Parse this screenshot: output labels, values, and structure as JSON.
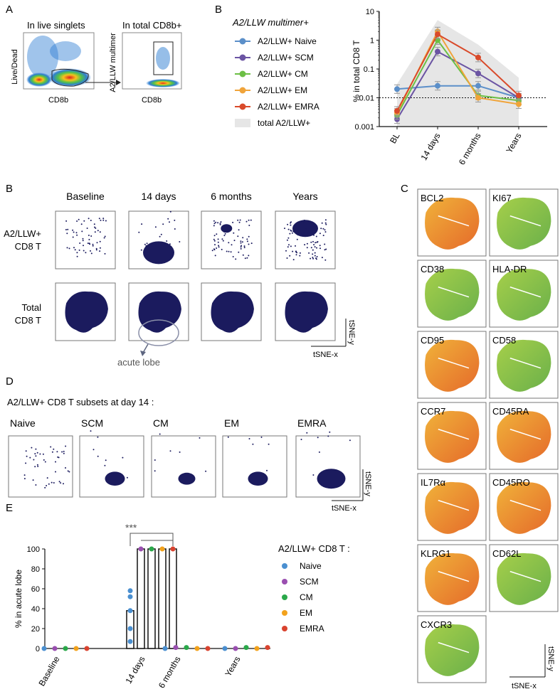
{
  "colors": {
    "navy": "#1b1b5e",
    "naive": "#5b8fc9",
    "scm": "#6b54a3",
    "cm": "#6cbf45",
    "em": "#f0a43a",
    "emra": "#d94a2a",
    "e_naive": "#4a8fd0",
    "e_scm": "#9a4fb0",
    "e_cm": "#2aa84a",
    "e_em": "#f2a21c",
    "e_emra": "#d9432f",
    "shade": "#e6e6e6"
  },
  "panelA": {
    "letter": "A",
    "plot1_title": "In live singlets",
    "plot2_title": "In total CD8b+",
    "plot1_ylabel": "Live/Dead",
    "plot1_xlabel": "CD8b",
    "plot2_ylabel": "A2/LLW multimer",
    "plot2_xlabel": "CD8b"
  },
  "panelB1": {
    "letter": "B",
    "legend_title": "A2/LLW multimer+",
    "legend": [
      "A2/LLW+ Naive",
      "A2/LLW+ SCM",
      "A2/LLW+ CM",
      "A2/LLW+ EM",
      "A2/LLW+ EMRA",
      "total A2/LLW+"
    ],
    "chart_data": {
      "type": "line",
      "ylabel": "% in total CD8 T",
      "yscale": "log",
      "ylim": [
        0.001,
        10
      ],
      "yticks": [
        "10",
        "1",
        "0.1",
        "0.01",
        "0.001"
      ],
      "categories": [
        "BL",
        "14 days",
        "6 months",
        "Years"
      ],
      "threshold": 0.01,
      "series": [
        {
          "name": "A2/LLW+ Naive",
          "values": [
            0.02,
            0.026,
            0.026,
            0.01
          ]
        },
        {
          "name": "A2/LLW+ SCM",
          "values": [
            0.0018,
            0.4,
            0.07,
            0.01
          ]
        },
        {
          "name": "A2/LLW+ CM",
          "values": [
            0.0025,
            1.0,
            0.012,
            0.008
          ]
        },
        {
          "name": "A2/LLW+ EM",
          "values": [
            0.003,
            2.0,
            0.01,
            0.006
          ]
        },
        {
          "name": "A2/LLW+ EMRA",
          "values": [
            0.0035,
            1.6,
            0.25,
            0.012
          ]
        }
      ],
      "band": {
        "name": "total A2/LLW+",
        "upper": [
          0.03,
          5.0,
          0.7,
          0.05
        ],
        "lower": [
          0.001,
          0.001,
          0.001,
          0.001
        ]
      }
    }
  },
  "panelB2": {
    "letter": "B",
    "cols": [
      "Baseline",
      "14 days",
      "6 months",
      "Years"
    ],
    "row1_label": [
      "A2/LLW+",
      "CD8 T"
    ],
    "row2_label": [
      "Total",
      "CD8 T"
    ],
    "annotation": "acute lobe",
    "axis_x": "tSNE-x",
    "axis_y": "tSNE-y"
  },
  "panelC": {
    "letter": "C",
    "markers": [
      "BCL2",
      "KI67",
      "CD38",
      "HLA-DR",
      "CD95",
      "CD58",
      "CCR7",
      "CD45RA",
      "IL7Rα",
      "CD45RO",
      "KLRG1",
      "CD62L",
      "CXCR3"
    ],
    "axis_x": "tSNE-x",
    "axis_y": "tSNE-y"
  },
  "panelD": {
    "letter": "D",
    "title": "A2/LLW+ CD8 T subsets at day 14 :",
    "subsets": [
      "Naive",
      "SCM",
      "CM",
      "EM",
      "EMRA"
    ],
    "axis_x": "tSNE-x",
    "axis_y": "tSNE-y"
  },
  "panelE": {
    "letter": "E",
    "sig": "***",
    "legend_title": "A2/LLW+ CD8 T :",
    "legend": [
      "Naive",
      "SCM",
      "CM",
      "EM",
      "EMRA"
    ],
    "chart_data": {
      "type": "bar",
      "ylabel": "% in acute lobe",
      "ylim": [
        0,
        100
      ],
      "yticks": [
        "0",
        "20",
        "40",
        "60",
        "80",
        "100"
      ],
      "categories": [
        "Baseline",
        "14 days",
        "6 months",
        "Years"
      ],
      "series": [
        {
          "name": "Naive",
          "values": [
            0,
            38,
            0,
            0
          ]
        },
        {
          "name": "SCM",
          "values": [
            0,
            100,
            1,
            0
          ]
        },
        {
          "name": "CM",
          "values": [
            0,
            100,
            1,
            1
          ]
        },
        {
          "name": "EM",
          "values": [
            0,
            100,
            0,
            0
          ]
        },
        {
          "name": "EMRA",
          "values": [
            0,
            100,
            0,
            1
          ]
        }
      ],
      "naive_points_14days": [
        58,
        52,
        38,
        20,
        7
      ]
    }
  }
}
